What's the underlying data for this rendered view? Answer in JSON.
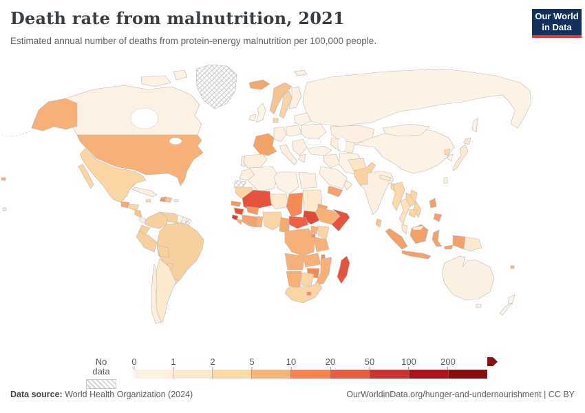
{
  "header": {
    "title": "Death rate from malnutrition, 2021",
    "subtitle": "Estimated annual number of deaths from protein-energy malnutrition per 100,000 people.",
    "logo": {
      "line1": "Our World",
      "line2": "in Data",
      "bg_color": "#12305b",
      "accent_color": "#dc3a3a"
    }
  },
  "chart_data": {
    "type": "choropleth",
    "title": "Death rate from malnutrition, 2021",
    "metric": "Estimated annual number of deaths from protein-energy malnutrition per 100,000 people",
    "year": "2021",
    "legend": {
      "no_data_label": "No data",
      "tick_labels": [
        "0",
        "1",
        "2",
        "5",
        "10",
        "20",
        "50",
        "100",
        "200"
      ],
      "bins": [
        {
          "range": "0-1",
          "color": "#fdf2e2"
        },
        {
          "range": "1-2",
          "color": "#fde8cc"
        },
        {
          "range": "2-5",
          "color": "#fcd8a4"
        },
        {
          "range": "5-10",
          "color": "#f9b374"
        },
        {
          "range": "10-20",
          "color": "#f8854f"
        },
        {
          "range": "20-50",
          "color": "#e85d42"
        },
        {
          "range": "50-100",
          "color": "#d03232"
        },
        {
          "range": "100-200",
          "color": "#b11218"
        },
        {
          "range": "200+",
          "color": "#8a0e0e"
        }
      ]
    },
    "regions": {
      "Greenland": "No data",
      "Western Sahara": "No data",
      "French Guiana": "No data",
      "Canada": "0-1",
      "United States": "5-10",
      "Mexico": "2-5",
      "Guatemala": "5-10",
      "Honduras": "2-5",
      "Nicaragua": "2-5",
      "Costa Rica": "0-1",
      "Panama": "2-5",
      "Cuba": "1-2",
      "Haiti": "5-10",
      "Dominican Republic": "2-5",
      "Colombia": "2-5",
      "Venezuela": "2-5",
      "Guyana": "0-1",
      "Suriname": "0-1",
      "Ecuador": "2-5",
      "Peru": "2-5",
      "Brazil": "2-5",
      "Bolivia": "2-5",
      "Paraguay": "2-5",
      "Uruguay": "2-5",
      "Argentina": "1-2",
      "Chile": "1-2",
      "Iceland": "5-10",
      "United Kingdom": "0-1",
      "Ireland": "0-1",
      "Norway": "2-5",
      "Sweden": "2-5",
      "Finland": "0-1",
      "Denmark": "2-5",
      "France": "5-10",
      "Germany": "0-1",
      "Spain": "1-2",
      "Portugal": "1-2",
      "Italy": "1-2",
      "Poland": "0-1",
      "Ukraine": "0-1",
      "Greece": "0-1",
      "Russia": "0-1",
      "Turkey": "0-1",
      "Kazakhstan": "0-1",
      "Uzbekistan": "1-2",
      "Iran": "0-1",
      "Iraq": "0-1",
      "Saudi Arabia": "0-1",
      "Yemen": "5-10",
      "Oman": "0-1",
      "Morocco": "1-2",
      "Algeria": "0-1",
      "Libya": "0-1",
      "Egypt": "0-1",
      "Mauritania": "2-5",
      "Mali": "20-50",
      "Niger": "1-2",
      "Chad": "10-20",
      "Sudan": "1-2",
      "South Sudan": "20-50",
      "Eritrea": "5-10",
      "Ethiopia": "5-10",
      "Somalia": "20-50",
      "Senegal": "5-10",
      "Guinea": "20-50",
      "Sierra Leone": "50-100",
      "Liberia": "5-10",
      "Cote d'Ivoire": "5-10",
      "Ghana": "5-10",
      "Burkina Faso": "5-10",
      "Nigeria": "2-5",
      "Cameroon": "5-10",
      "Central African Republic": "10-20",
      "Democratic Republic of Congo": "5-10",
      "Uganda": "5-10",
      "Kenya": "2-5",
      "Tanzania": "5-10",
      "Angola": "5-10",
      "Zambia": "5-10",
      "Malawi": "10-20",
      "Mozambique": "5-10",
      "Zimbabwe": "10-20",
      "Namibia": "5-10",
      "Botswana": "2-5",
      "South Africa": "2-5",
      "Lesotho": "10-20",
      "Madagascar": "20-50",
      "Afghanistan": "1-2",
      "Pakistan": "2-5",
      "India": "0-1",
      "Nepal": "1-2",
      "Bangladesh": "2-5",
      "Sri Lanka": "2-5",
      "China": "0-1",
      "Mongolia": "0-1",
      "Myanmar": "2-5",
      "Thailand": "1-2",
      "Laos": "2-5",
      "Vietnam": "2-5",
      "Cambodia": "2-5",
      "Malaysia": "1-2",
      "Indonesia": "5-10",
      "Philippines": "5-10",
      "Papua New Guinea": "1-2",
      "North Korea": "2-5",
      "South Korea": "0-1",
      "Japan": "1-2",
      "Australia": "0-1",
      "New Zealand": "0-1"
    }
  },
  "map": {
    "fills": {
      "canada": "#fdf1e3",
      "usa": "#f6b078",
      "mexico": "#fbd6a4",
      "guatemala": "#f5aa70",
      "honduras": "#fbd6a4",
      "nicaragua": "#f9c287",
      "costarica": "#fdf0e0",
      "panama": "#fbd6a4",
      "cuba": "#fdeedd",
      "jamaica": "#fbd6a4",
      "haiti": "#f09a62",
      "dominican": "#f9c287",
      "puertorico": "#fdeedd",
      "colombia": "#f8cf9e",
      "venezuela": "#f8cf9e",
      "guyana": "#fdf6ec",
      "suriname": "#fdf0e0",
      "ecuador": "#f8cf9e",
      "peru": "#f8cf9e",
      "brazil": "#f8cf9e",
      "bolivia": "#f8cf9e",
      "paraguay": "#f8cf9e",
      "uruguay": "#fbd6a4",
      "argentina": "#fde9cd",
      "chile": "#fdeedd",
      "iceland": "#f3a76d",
      "uk": "#fdf4e8",
      "ireland": "#fdf0e0",
      "norway": "#f5c291",
      "sweden": "#f8d4a8",
      "finland": "#fdf0e0",
      "denmark": "#fbd6a4",
      "france": "#f2a368",
      "germany": "#fdf0e0",
      "spain": "#fdeedd",
      "portugal": "#fdeedd",
      "italy": "#fdeedd",
      "poland": "#fdf2e4",
      "easteurope": "#fdf2e6",
      "balkans": "#fdf0e2",
      "greece": "#fdf0e0",
      "baltics": "#fdf2e6",
      "russia": "#fdf2e6",
      "kazakhstan": "#fdf0e2",
      "centralasia": "#fdeedd",
      "turkey": "#fdf2e6",
      "iraqsyria": "#fdf0e0",
      "iran": "#fdf2e6",
      "saudi": "#fdf2e6",
      "yemen": "#f5a26b",
      "oman": "#fdf0e0",
      "morocco": "#fdeedd",
      "algeria": "#fdf2e6",
      "libya": "#fdf2e6",
      "egypt": "#fdf0e2",
      "mauritania": "#fbd6a4",
      "mali": "#e5533f",
      "niger": "#fde9cd",
      "chad": "#f58a54",
      "sudan": "#fde9cd",
      "eritrea": "#f5a26b",
      "ethiopia": "#f6b078",
      "somalia": "#e5533f",
      "southsudan": "#e04a38",
      "senegal": "#f09a62",
      "guinea": "#e5533f",
      "sierraleone": "#d6402f",
      "liberia": "#f6b078",
      "ivorycoast": "#f5a26b",
      "ghana": "#f5a26b",
      "togobenin": "#f6b078",
      "burkina": "#f09a62",
      "nigeria": "#fbd6a4",
      "cameroon": "#f5aa70",
      "car": "#ec6247",
      "drc": "#f6b078",
      "uganda": "#f6b078",
      "kenya": "#fbd6a4",
      "tanzania": "#f6b078",
      "rwandaburundi": "#f58a54",
      "angola": "#f6b078",
      "zambia": "#f6b078",
      "malawi": "#f58a54",
      "mozambique": "#f6b078",
      "zimbabwe": "#f58a54",
      "namibia": "#f6b078",
      "botswana": "#fbd6a4",
      "southafrica": "#fbd6a4",
      "lesotho": "#f58a54",
      "madagascar": "#e5533f",
      "afghanistan": "#fde4c2",
      "pakistan": "#fad1a0",
      "india": "#fdf0e3",
      "nepal": "#fde9cd",
      "bangladesh": "#fbd6a4",
      "srilanka": "#f9c287",
      "china": "#fdf2e6",
      "mongolia": "#fdf2e6",
      "myanmar": "#fbd9ab",
      "thailand": "#fde3bd",
      "laos": "#fbd6a4",
      "vietnam": "#fbd6a4",
      "cambodia": "#fbd6a4",
      "malaysia": "#fde9cd",
      "indonesia": "#f3a06a",
      "borneomalaysia": "#fde9cd",
      "png": "#fde9cd",
      "philippines": "#f3a06a",
      "taiwan": "#fdf0e0",
      "northkorea": "#fbd9b0",
      "southkorea": "#fdf4ea",
      "japan": "#fbe9d2",
      "australia": "#fcf0e3",
      "tasmania": "#fdf0e0",
      "newzealand": "#fdf4ea",
      "island": "#f6b078",
      "lightisland": "#fdf0e0"
    }
  },
  "footer": {
    "source_label": "Data source:",
    "source_text": " World Health Organization (2024)",
    "link_text": "OurWorldinData.org/hunger-and-undernourishment",
    "separator": " | ",
    "license_text": "CC BY"
  }
}
